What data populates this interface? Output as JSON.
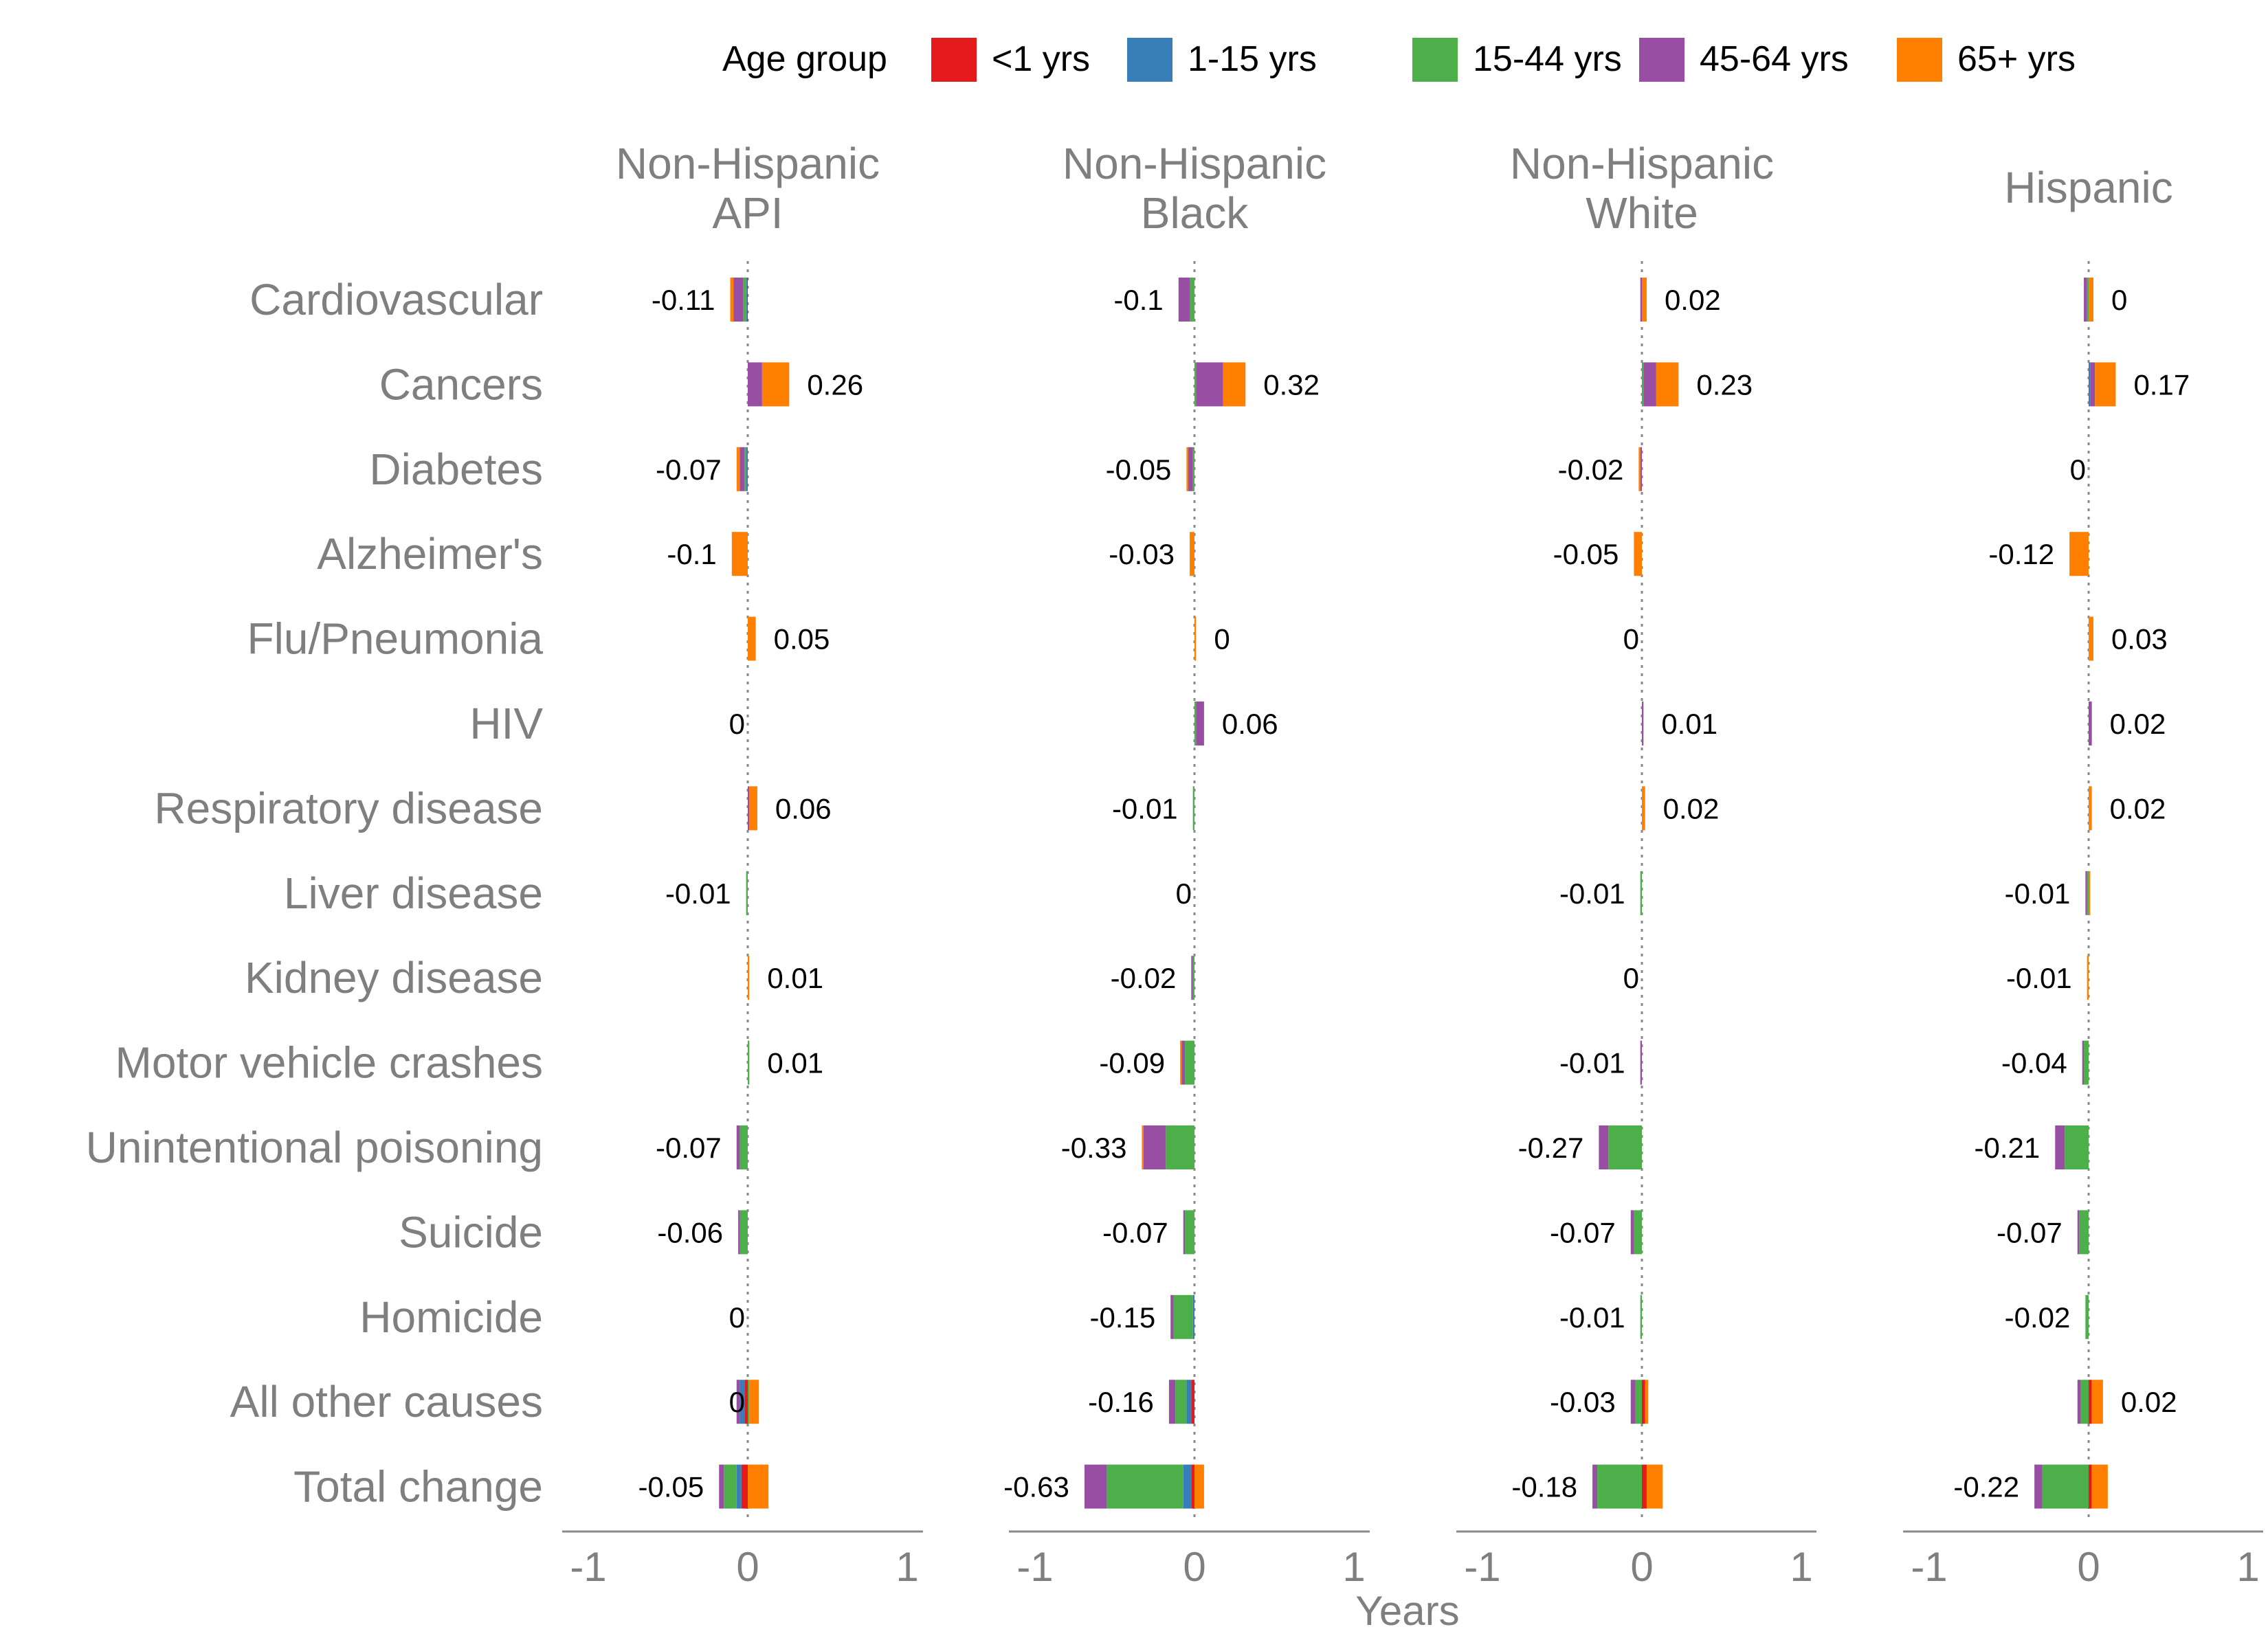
{
  "chart_data": {
    "type": "bar",
    "orientation": "horizontal",
    "stacked": true,
    "legend": {
      "title": "Age group",
      "position": "top",
      "entries": [
        {
          "key": "lt1",
          "label": "<1 yrs",
          "color": "#E41A1C"
        },
        {
          "key": "a1_15",
          "label": "1-15 yrs",
          "color": "#377EB8"
        },
        {
          "key": "a15_44",
          "label": "15-44 yrs",
          "color": "#4DAF4A"
        },
        {
          "key": "a45_64",
          "label": "45-64 yrs",
          "color": "#984EA3"
        },
        {
          "key": "a65",
          "label": "65+ yrs",
          "color": "#FF7F00"
        }
      ]
    },
    "categories": [
      "Cardiovascular",
      "Cancers",
      "Diabetes",
      "Alzheimer's",
      "Flu/Pneumonia",
      "HIV",
      "Respiratory disease",
      "Liver disease",
      "Kidney disease",
      "Motor vehicle crashes",
      "Unintentional poisoning",
      "Suicide",
      "Homicide",
      "All other causes",
      "Total change"
    ],
    "xlabel": "Years",
    "xlim": [
      -1.18,
      1.1
    ],
    "xticks": [
      -1,
      0,
      1
    ],
    "xtick_labels": [
      "-1",
      "0",
      "1"
    ],
    "grid": false,
    "panels": [
      {
        "title": "Non-Hispanic\nAPI",
        "totals": [
          "-0.11",
          "0.26",
          "-0.07",
          "-0.1",
          "0.05",
          "0",
          "0.06",
          "-0.01",
          "0.01",
          "0.01",
          "-0.07",
          "-0.06",
          "0",
          "0",
          "-0.05"
        ],
        "segments": [
          [
            -0.005,
            -0.005,
            -0.02,
            -0.06,
            -0.02
          ],
          [
            0,
            0,
            0,
            0.09,
            0.17
          ],
          [
            0,
            -0.01,
            -0.01,
            -0.03,
            -0.02
          ],
          [
            0,
            0,
            0,
            0,
            -0.1
          ],
          [
            0,
            0,
            0,
            0,
            0.05
          ],
          [
            0,
            0,
            0,
            0,
            0
          ],
          [
            0,
            0,
            0,
            0.01,
            0.05
          ],
          [
            0,
            0,
            -0.01,
            0,
            0
          ],
          [
            0,
            0,
            0,
            0,
            0.01
          ],
          [
            0,
            0,
            0.01,
            0,
            0
          ],
          [
            0,
            0,
            -0.05,
            -0.02,
            0
          ],
          [
            0,
            0,
            -0.05,
            -0.01,
            0
          ],
          [
            0,
            0,
            0,
            0,
            0
          ],
          [
            -0.02,
            -0.03,
            0.01,
            -0.02,
            0.06
          ],
          [
            -0.04,
            -0.03,
            -0.08,
            -0.03,
            0.13
          ]
        ]
      },
      {
        "title": "Non-Hispanic\nBlack",
        "totals": [
          "-0.1",
          "0.32",
          "-0.05",
          "-0.03",
          "0",
          "0.06",
          "-0.01",
          "0",
          "-0.02",
          "-0.09",
          "-0.33",
          "-0.07",
          "-0.15",
          "-0.16",
          "-0.63"
        ],
        "segments": [
          [
            0,
            0,
            -0.03,
            -0.07,
            0
          ],
          [
            0,
            0,
            0.01,
            0.17,
            0.14
          ],
          [
            0,
            0,
            -0.01,
            -0.03,
            -0.01
          ],
          [
            0,
            0,
            0,
            0,
            -0.03
          ],
          [
            0,
            0,
            0,
            0,
            0.01
          ],
          [
            0,
            0,
            0.01,
            0.05,
            0
          ],
          [
            0,
            0,
            -0.01,
            0,
            0
          ],
          [
            0,
            0,
            0,
            0,
            0
          ],
          [
            0,
            0,
            -0.01,
            -0.01,
            0
          ],
          [
            0,
            0,
            -0.06,
            -0.02,
            -0.01
          ],
          [
            0,
            0,
            -0.18,
            -0.14,
            -0.01
          ],
          [
            0,
            0,
            -0.06,
            -0.01,
            0
          ],
          [
            0,
            -0.01,
            -0.12,
            -0.02,
            0
          ],
          [
            -0.02,
            -0.03,
            -0.07,
            -0.04,
            0
          ],
          [
            -0.02,
            -0.05,
            -0.48,
            -0.14,
            0.06
          ]
        ]
      },
      {
        "title": "Non-Hispanic\nWhite",
        "totals": [
          "0.02",
          "0.23",
          "-0.02",
          "-0.05",
          "0",
          "0.01",
          "0.02",
          "-0.01",
          "0",
          "-0.01",
          "-0.27",
          "-0.07",
          "-0.01",
          "-0.03",
          "-0.18"
        ],
        "segments": [
          [
            0,
            0,
            0,
            -0.01,
            0.03
          ],
          [
            0,
            0,
            0.01,
            0.08,
            0.14
          ],
          [
            0,
            0,
            0,
            -0.01,
            -0.01
          ],
          [
            0,
            0,
            0,
            0,
            -0.05
          ],
          [
            0,
            0,
            0,
            0,
            0
          ],
          [
            0,
            0,
            0,
            0.01,
            0
          ],
          [
            0,
            0,
            0,
            0,
            0.02
          ],
          [
            0,
            0,
            -0.01,
            0,
            0
          ],
          [
            0,
            0,
            0,
            0,
            0
          ],
          [
            0,
            0,
            0,
            -0.01,
            0
          ],
          [
            0,
            0,
            -0.21,
            -0.06,
            0
          ],
          [
            0,
            0,
            -0.05,
            -0.02,
            0
          ],
          [
            0,
            0,
            -0.01,
            0,
            0
          ],
          [
            0.02,
            0,
            -0.04,
            -0.03,
            0.02
          ],
          [
            0.03,
            0,
            -0.28,
            -0.03,
            0.1
          ]
        ]
      },
      {
        "title": "Hispanic",
        "totals": [
          "0",
          "0.17",
          "0",
          "-0.12",
          "0.03",
          "0.02",
          "0.02",
          "-0.01",
          "-0.01",
          "-0.04",
          "-0.21",
          "-0.07",
          "-0.02",
          "0.02",
          "-0.22"
        ],
        "segments": [
          [
            0,
            0,
            -0.01,
            -0.02,
            0.03
          ],
          [
            0,
            0.01,
            0,
            0.03,
            0.13
          ],
          [
            0,
            0,
            0,
            0,
            0
          ],
          [
            0,
            0,
            0,
            0,
            -0.12
          ],
          [
            0,
            0,
            0,
            0,
            0.03
          ],
          [
            0,
            0,
            0,
            0.02,
            0
          ],
          [
            0,
            0,
            0,
            0,
            0.02
          ],
          [
            0,
            0,
            -0.01,
            -0.01,
            0.01
          ],
          [
            0,
            0,
            0,
            0,
            -0.01
          ],
          [
            0,
            0,
            -0.03,
            -0.01,
            0
          ],
          [
            0,
            0,
            -0.15,
            -0.06,
            0
          ],
          [
            0,
            0,
            -0.06,
            -0.01,
            0
          ],
          [
            0,
            0,
            -0.02,
            0,
            0
          ],
          [
            0.02,
            0,
            -0.05,
            -0.02,
            0.07
          ],
          [
            0.02,
            0,
            -0.29,
            -0.05,
            0.1
          ]
        ]
      }
    ]
  }
}
